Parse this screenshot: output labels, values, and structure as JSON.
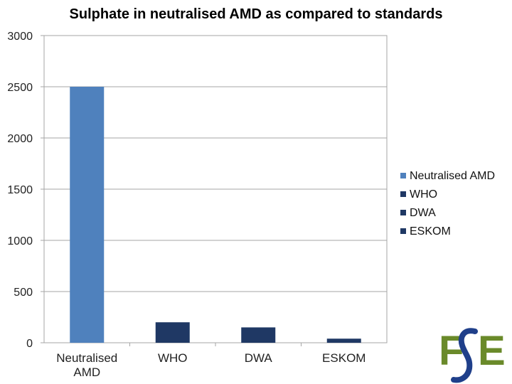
{
  "chart_data": {
    "type": "bar",
    "title": "Sulphate in neutralised AMD as compared to standards",
    "xlabel": "",
    "ylabel": "",
    "ylim": [
      0,
      3000
    ],
    "yticks": [
      0,
      500,
      1000,
      1500,
      2000,
      2500,
      3000
    ],
    "grid": true,
    "legend_position": "right",
    "categories": [
      "Neutralised AMD",
      "WHO",
      "DWA",
      "ESKOM"
    ],
    "category_labels": [
      [
        "Neutralised",
        "AMD"
      ],
      [
        "WHO"
      ],
      [
        "DWA"
      ],
      [
        "ESKOM"
      ]
    ],
    "values": [
      2500,
      200,
      150,
      40
    ],
    "colors": [
      "#4f81bd",
      "#1f3864",
      "#1f3864",
      "#1f3864"
    ],
    "legend": [
      {
        "label": "Neutralised AMD",
        "color": "#4f81bd"
      },
      {
        "label": " WHO",
        "color": "#1f3864"
      },
      {
        "label": "DWA",
        "color": "#1f3864"
      },
      {
        "label": "ESKOM",
        "color": "#1f3864"
      }
    ]
  },
  "logo": {
    "text": "FSE",
    "colors": {
      "f": "#6a8a2a",
      "s": "#1f3f8a",
      "e": "#6a8a2a"
    }
  }
}
